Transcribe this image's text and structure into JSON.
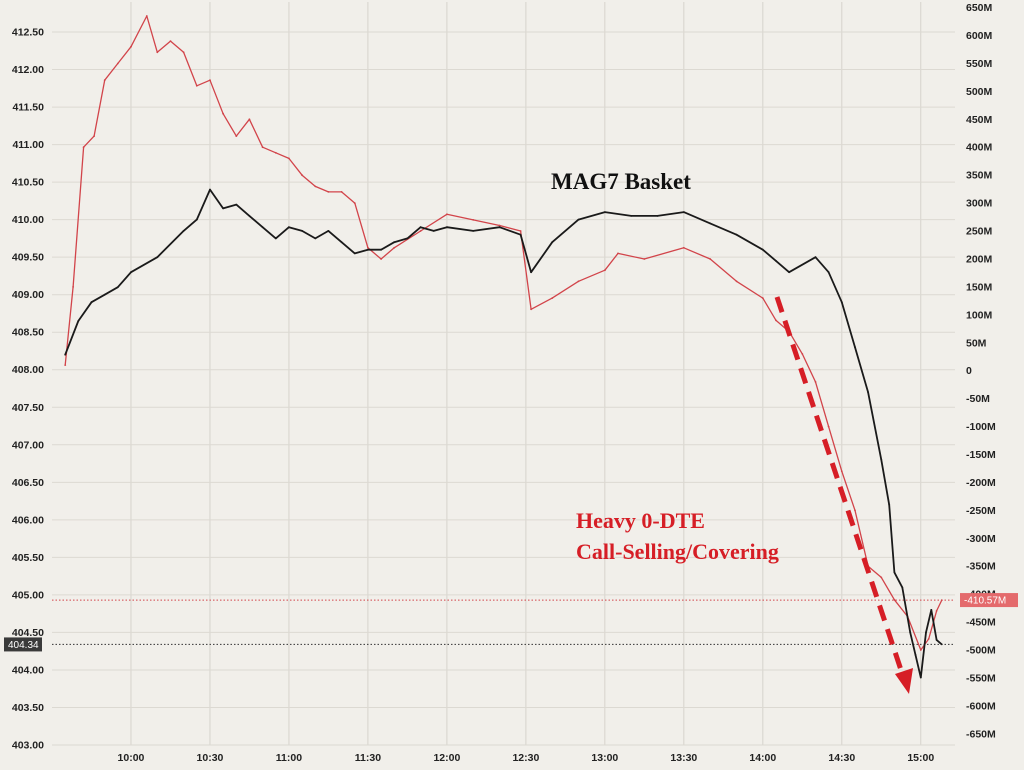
{
  "chart_data": {
    "type": "line",
    "title": "",
    "x_ticks": [
      "10:00",
      "10:30",
      "11:00",
      "11:30",
      "12:00",
      "12:30",
      "13:00",
      "13:30",
      "14:00",
      "14:30",
      "15:00"
    ],
    "y_left": {
      "ticks": [
        "403.00",
        "403.50",
        "404.00",
        "404.50",
        "405.00",
        "405.50",
        "406.00",
        "406.50",
        "407.00",
        "407.50",
        "408.00",
        "408.50",
        "409.00",
        "409.50",
        "410.00",
        "410.50",
        "411.00",
        "411.50",
        "412.00",
        "412.50"
      ],
      "range": [
        403.0,
        412.9
      ]
    },
    "y_right": {
      "ticks": [
        "-650M",
        "-600M",
        "-550M",
        "-500M",
        "-450M",
        "-400M",
        "-350M",
        "-300M",
        "-250M",
        "-200M",
        "-150M",
        "-100M",
        "-50M",
        "0",
        "50M",
        "100M",
        "150M",
        "200M",
        "250M",
        "300M",
        "350M",
        "400M",
        "450M",
        "500M",
        "550M",
        "600M",
        "650M"
      ],
      "range": [
        -670,
        660
      ]
    },
    "series": [
      {
        "name": "MAG7 Basket",
        "axis": "left",
        "color": "#1a1a1a",
        "points": [
          [
            "09:35",
            408.2
          ],
          [
            "09:40",
            408.65
          ],
          [
            "09:45",
            408.9
          ],
          [
            "09:50",
            409.0
          ],
          [
            "09:55",
            409.1
          ],
          [
            "10:00",
            409.3
          ],
          [
            "10:10",
            409.5
          ],
          [
            "10:20",
            409.85
          ],
          [
            "10:25",
            410.0
          ],
          [
            "10:30",
            410.4
          ],
          [
            "10:35",
            410.15
          ],
          [
            "10:40",
            410.2
          ],
          [
            "10:45",
            410.05
          ],
          [
            "10:50",
            409.9
          ],
          [
            "10:55",
            409.75
          ],
          [
            "11:00",
            409.9
          ],
          [
            "11:05",
            409.85
          ],
          [
            "11:10",
            409.75
          ],
          [
            "11:15",
            409.85
          ],
          [
            "11:20",
            409.7
          ],
          [
            "11:25",
            409.55
          ],
          [
            "11:30",
            409.6
          ],
          [
            "11:35",
            409.6
          ],
          [
            "11:40",
            409.7
          ],
          [
            "11:45",
            409.75
          ],
          [
            "11:50",
            409.9
          ],
          [
            "11:55",
            409.85
          ],
          [
            "12:00",
            409.9
          ],
          [
            "12:10",
            409.85
          ],
          [
            "12:20",
            409.9
          ],
          [
            "12:28",
            409.8
          ],
          [
            "12:32",
            409.3
          ],
          [
            "12:40",
            409.7
          ],
          [
            "12:50",
            410.0
          ],
          [
            "13:00",
            410.1
          ],
          [
            "13:10",
            410.05
          ],
          [
            "13:20",
            410.05
          ],
          [
            "13:30",
            410.1
          ],
          [
            "13:40",
            409.95
          ],
          [
            "13:50",
            409.8
          ],
          [
            "14:00",
            409.6
          ],
          [
            "14:05",
            409.45
          ],
          [
            "14:10",
            409.3
          ],
          [
            "14:20",
            409.5
          ],
          [
            "14:25",
            409.3
          ],
          [
            "14:30",
            408.9
          ],
          [
            "14:35",
            408.3
          ],
          [
            "14:40",
            407.7
          ],
          [
            "14:45",
            406.8
          ],
          [
            "14:48",
            406.2
          ],
          [
            "14:50",
            405.3
          ],
          [
            "14:53",
            405.1
          ],
          [
            "14:56",
            404.5
          ],
          [
            "14:58",
            404.2
          ],
          [
            "15:00",
            403.9
          ],
          [
            "15:02",
            404.5
          ],
          [
            "15:04",
            404.8
          ],
          [
            "15:06",
            404.4
          ],
          [
            "15:08",
            404.34
          ]
        ]
      },
      {
        "name": "",
        "axis": "right",
        "color": "#d2444a",
        "points": [
          [
            "09:35",
            10
          ],
          [
            "09:38",
            150
          ],
          [
            "09:42",
            400
          ],
          [
            "09:46",
            420
          ],
          [
            "09:50",
            520
          ],
          [
            "09:55",
            550
          ],
          [
            "10:00",
            580
          ],
          [
            "10:06",
            635
          ],
          [
            "10:10",
            570
          ],
          [
            "10:15",
            590
          ],
          [
            "10:20",
            570
          ],
          [
            "10:25",
            510
          ],
          [
            "10:30",
            520
          ],
          [
            "10:35",
            460
          ],
          [
            "10:40",
            420
          ],
          [
            "10:45",
            450
          ],
          [
            "10:50",
            400
          ],
          [
            "10:55",
            390
          ],
          [
            "11:00",
            380
          ],
          [
            "11:05",
            350
          ],
          [
            "11:10",
            330
          ],
          [
            "11:15",
            320
          ],
          [
            "11:20",
            320
          ],
          [
            "11:25",
            300
          ],
          [
            "11:30",
            220
          ],
          [
            "11:35",
            200
          ],
          [
            "11:40",
            220
          ],
          [
            "11:50",
            250
          ],
          [
            "12:00",
            280
          ],
          [
            "12:10",
            270
          ],
          [
            "12:20",
            260
          ],
          [
            "12:28",
            250
          ],
          [
            "12:32",
            110
          ],
          [
            "12:40",
            130
          ],
          [
            "12:50",
            160
          ],
          [
            "13:00",
            180
          ],
          [
            "13:05",
            210
          ],
          [
            "13:15",
            200
          ],
          [
            "13:30",
            220
          ],
          [
            "13:40",
            200
          ],
          [
            "13:50",
            160
          ],
          [
            "14:00",
            130
          ],
          [
            "14:05",
            90
          ],
          [
            "14:10",
            70
          ],
          [
            "14:15",
            30
          ],
          [
            "14:20",
            -20
          ],
          [
            "14:25",
            -100
          ],
          [
            "14:30",
            -180
          ],
          [
            "14:35",
            -250
          ],
          [
            "14:40",
            -350
          ],
          [
            "14:45",
            -370
          ],
          [
            "14:50",
            -410
          ],
          [
            "14:55",
            -440
          ],
          [
            "15:00",
            -500
          ],
          [
            "15:03",
            -480
          ],
          [
            "15:06",
            -430
          ],
          [
            "15:08",
            -410.57
          ]
        ]
      }
    ],
    "last_values": {
      "left": "404.34",
      "right": "-410.57M"
    },
    "annotations": [
      "MAG7 Basket",
      "Heavy 0-DTE",
      "Call-Selling/Covering"
    ]
  }
}
